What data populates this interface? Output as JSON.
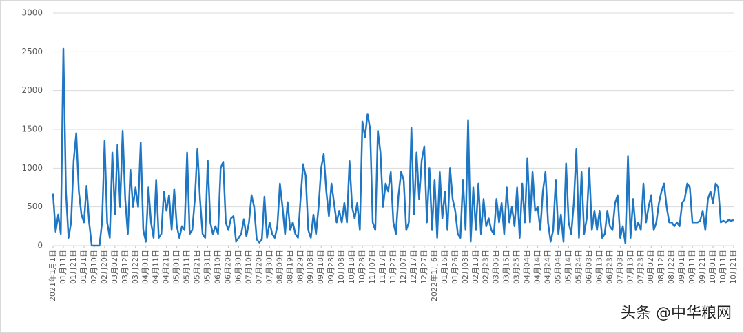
{
  "chart_data": {
    "type": "line",
    "categories": [
      "2021年1月1日",
      null,
      null,
      null,
      "01月11日",
      null,
      null,
      null,
      "01月21日",
      null,
      null,
      null,
      "01月31日",
      null,
      null,
      null,
      "02月10日",
      null,
      null,
      null,
      "02月20日",
      null,
      null,
      null,
      "03月02日",
      null,
      null,
      null,
      "03月12日",
      null,
      null,
      null,
      "03月22日",
      null,
      null,
      null,
      "04月01日",
      null,
      null,
      null,
      "04月11日",
      null,
      null,
      null,
      "04月21日",
      null,
      null,
      null,
      "05月01日",
      null,
      null,
      null,
      "05月11日",
      null,
      null,
      null,
      "05月21日",
      null,
      null,
      null,
      "05月31日",
      null,
      null,
      null,
      "06月10日",
      null,
      null,
      null,
      "06月20日",
      null,
      null,
      null,
      "06月30日",
      null,
      null,
      null,
      "07月10日",
      null,
      null,
      null,
      "07月20日",
      null,
      null,
      null,
      "07月30日",
      null,
      null,
      null,
      "08月09日",
      null,
      null,
      null,
      "08月19日",
      null,
      null,
      null,
      "08月29日",
      null,
      null,
      null,
      "09月08日",
      null,
      null,
      null,
      "09月18日",
      null,
      null,
      null,
      "09月28日",
      null,
      null,
      null,
      "10月08日",
      null,
      null,
      null,
      "10月18日",
      null,
      null,
      null,
      "10月28日",
      null,
      null,
      null,
      "11月07日",
      null,
      null,
      null,
      "11月17日",
      null,
      null,
      null,
      "11月27日",
      null,
      null,
      null,
      "12月07日",
      null,
      null,
      null,
      "12月17日",
      null,
      null,
      null,
      "12月27日",
      null,
      null,
      null,
      "2022年1月6日",
      null,
      null,
      null,
      "01月16日",
      null,
      null,
      null,
      "01月26日",
      null,
      null,
      null,
      "02月03日",
      null,
      null,
      null,
      "02月13日",
      null,
      null,
      null,
      "02月23日",
      null,
      null,
      null,
      "03月05日",
      null,
      null,
      null,
      "03月15日",
      null,
      null,
      null,
      "03月25日",
      null,
      null,
      null,
      "04月04日",
      null,
      null,
      null,
      "04月14日",
      null,
      null,
      null,
      "04月24日",
      null,
      null,
      null,
      "05月04日",
      null,
      null,
      null,
      "05月14日",
      null,
      null,
      null,
      "05月24日",
      null,
      null,
      null,
      "06月03日",
      null,
      null,
      null,
      "06月13日",
      null,
      null,
      null,
      "06月23日",
      null,
      null,
      null,
      "07月03日",
      null,
      null,
      null,
      "07月13日",
      null,
      null,
      null,
      "07月23日",
      null,
      null,
      null,
      "08月02日",
      null,
      null,
      null,
      "08月12日",
      null,
      null,
      null,
      "08月22日",
      null,
      null,
      null,
      "09月01日",
      null,
      null,
      null,
      "09月11日",
      null,
      null,
      null,
      "09月21日",
      null,
      null,
      null,
      "10月01日",
      null,
      null,
      null,
      "10月11日",
      null,
      null,
      null,
      "10月21日"
    ],
    "values": [
      670,
      180,
      400,
      150,
      2540,
      700,
      100,
      300,
      1100,
      1450,
      700,
      400,
      300,
      770,
      300,
      0,
      0,
      0,
      0,
      300,
      1350,
      300,
      100,
      1200,
      400,
      1300,
      500,
      1480,
      600,
      150,
      980,
      500,
      750,
      500,
      1330,
      200,
      50,
      750,
      300,
      100,
      850,
      100,
      150,
      700,
      450,
      650,
      200,
      730,
      250,
      100,
      250,
      200,
      1200,
      150,
      200,
      600,
      1250,
      600,
      150,
      100,
      1100,
      300,
      150,
      250,
      150,
      1000,
      1080,
      300,
      200,
      350,
      380,
      50,
      100,
      150,
      340,
      120,
      300,
      650,
      500,
      80,
      40,
      80,
      630,
      100,
      300,
      150,
      100,
      250,
      800,
      500,
      150,
      560,
      200,
      300,
      150,
      100,
      600,
      1050,
      900,
      200,
      100,
      400,
      150,
      500,
      1000,
      1180,
      700,
      380,
      800,
      550,
      300,
      450,
      300,
      550,
      300,
      1090,
      500,
      350,
      550,
      200,
      1600,
      1400,
      1700,
      1500,
      300,
      200,
      1480,
      1200,
      500,
      800,
      700,
      950,
      300,
      150,
      650,
      950,
      850,
      200,
      300,
      1520,
      400,
      1200,
      600,
      1100,
      1280,
      300,
      1000,
      200,
      850,
      100,
      950,
      350,
      700,
      200,
      1000,
      600,
      450,
      150,
      100,
      850,
      200,
      1620,
      50,
      750,
      200,
      800,
      150,
      600,
      250,
      350,
      200,
      150,
      600,
      300,
      550,
      150,
      750,
      300,
      500,
      250,
      750,
      100,
      800,
      300,
      1130,
      300,
      950,
      450,
      500,
      200,
      700,
      950,
      300,
      50,
      200,
      850,
      150,
      400,
      50,
      1060,
      300,
      150,
      550,
      1250,
      100,
      950,
      150,
      350,
      1000,
      200,
      450,
      200,
      450,
      100,
      150,
      450,
      250,
      200,
      550,
      650,
      100,
      250,
      30,
      1150,
      100,
      600,
      200,
      300,
      200,
      800,
      300,
      500,
      650,
      200,
      300,
      550,
      700,
      800,
      500,
      300,
      300,
      250,
      300,
      250,
      550,
      600,
      800,
      750,
      300,
      300,
      300,
      320,
      450,
      200,
      600,
      700,
      550,
      800,
      750,
      300,
      320,
      300,
      330,
      320,
      330
    ],
    "color": "#1f77c4",
    "ylim": [
      0,
      3000
    ],
    "yticks": [
      0,
      500,
      1000,
      1500,
      2000,
      2500,
      3000
    ],
    "grid": true,
    "watermark": "头条 @中华粮网"
  }
}
